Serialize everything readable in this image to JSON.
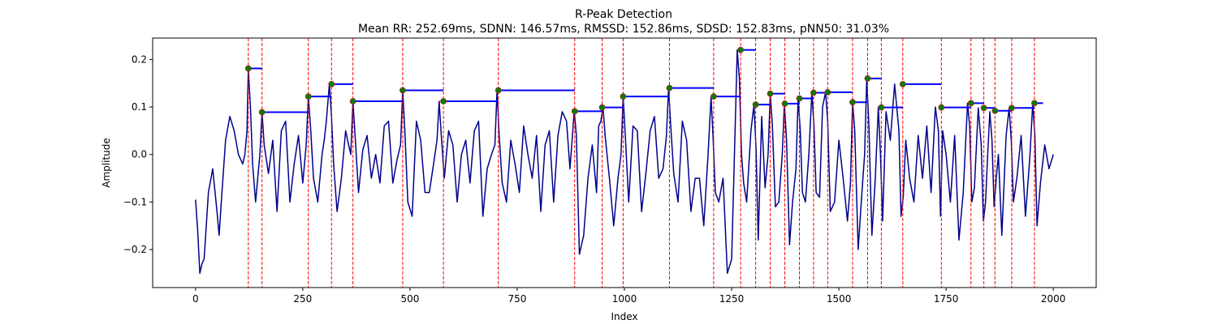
{
  "chart_data": {
    "type": "line",
    "title": "R-Peak Detection",
    "subtitle": "Mean RR: 252.69ms, SDNN: 146.57ms, RMSSD: 152.86ms, SDSD: 152.83ms, pNN50: 31.03%",
    "xlabel": "Index",
    "ylabel": "Amplitude",
    "xlim": [
      -100,
      2100
    ],
    "ylim": [
      -0.28,
      0.245
    ],
    "xticks": [
      0,
      250,
      500,
      750,
      1000,
      1250,
      1500,
      1750,
      2000
    ],
    "xtick_labels": [
      "0",
      "250",
      "500",
      "750",
      "1000",
      "1250",
      "1500",
      "1750",
      "2000"
    ],
    "yticks": [
      -0.2,
      -0.1,
      0.0,
      0.1,
      0.2
    ],
    "ytick_labels": [
      "−0.2",
      "−0.1",
      "0.0",
      "0.1",
      "0.2"
    ],
    "grid": false,
    "colors": {
      "signal": "#00008b",
      "peak_marker": "#008000",
      "rr_interval": "#0000ff",
      "peak_line": "#ff0000"
    },
    "signal": {
      "name": "",
      "x": [
        0,
        5,
        10,
        15,
        20,
        30,
        40,
        50,
        55,
        60,
        70,
        80,
        90,
        100,
        110,
        115,
        120,
        123,
        128,
        133,
        140,
        145,
        150,
        155,
        160,
        170,
        180,
        190,
        200,
        210,
        220,
        230,
        240,
        250,
        258,
        263,
        268,
        275,
        285,
        295,
        300,
        305,
        312,
        317,
        322,
        330,
        340,
        350,
        357,
        362,
        367,
        372,
        380,
        390,
        400,
        410,
        420,
        430,
        440,
        450,
        460,
        470,
        478,
        483,
        488,
        495,
        505,
        515,
        525,
        535,
        545,
        555,
        563,
        568,
        573,
        580,
        590,
        600,
        610,
        620,
        630,
        640,
        650,
        660,
        670,
        680,
        690,
        698,
        703,
        708,
        715,
        725,
        735,
        745,
        755,
        765,
        775,
        785,
        795,
        805,
        815,
        825,
        835,
        845,
        855,
        865,
        873,
        878,
        883,
        888,
        895,
        905,
        915,
        925,
        935,
        940,
        945,
        950,
        955,
        965,
        975,
        985,
        992,
        997,
        1002,
        1010,
        1020,
        1030,
        1040,
        1050,
        1060,
        1070,
        1080,
        1090,
        1098,
        1103,
        1108,
        1115,
        1125,
        1135,
        1145,
        1155,
        1165,
        1175,
        1185,
        1195,
        1202,
        1207,
        1212,
        1220,
        1230,
        1240,
        1250,
        1258,
        1263,
        1268,
        1273,
        1278,
        1285,
        1295,
        1302,
        1307,
        1312,
        1320,
        1328,
        1335,
        1340,
        1345,
        1352,
        1360,
        1368,
        1373,
        1378,
        1385,
        1392,
        1400,
        1405,
        1410,
        1415,
        1422,
        1430,
        1437,
        1442,
        1447,
        1455,
        1462,
        1469,
        1474,
        1480,
        1490,
        1500,
        1510,
        1520,
        1527,
        1532,
        1537,
        1545,
        1553,
        1560,
        1565,
        1570,
        1577,
        1585,
        1592,
        1597,
        1602,
        1610,
        1620,
        1630,
        1640,
        1645,
        1650,
        1656,
        1665,
        1675,
        1685,
        1695,
        1705,
        1715,
        1725,
        1732,
        1737,
        1742,
        1750,
        1760,
        1770,
        1780,
        1790,
        1800,
        1805,
        1810,
        1816,
        1825,
        1832,
        1837,
        1842,
        1847,
        1852,
        1857,
        1862,
        1867,
        1872,
        1880,
        1890,
        1897,
        1902,
        1907,
        1915,
        1925,
        1935,
        1945,
        1952,
        1957,
        1962,
        1970,
        1980,
        1990,
        2000
      ],
      "y": [
        -0.095,
        -0.16,
        -0.25,
        -0.23,
        -0.22,
        -0.08,
        -0.03,
        -0.12,
        -0.17,
        -0.1,
        0.03,
        0.08,
        0.05,
        0.0,
        -0.02,
        0.0,
        0.05,
        0.181,
        0.1,
        -0.02,
        -0.1,
        -0.05,
        0.0,
        0.09,
        0.02,
        -0.04,
        0.03,
        -0.12,
        0.05,
        0.07,
        -0.1,
        -0.02,
        0.04,
        -0.06,
        0.02,
        0.122,
        0.06,
        -0.05,
        -0.1,
        0.0,
        0.03,
        0.07,
        0.148,
        0.08,
        -0.02,
        -0.12,
        -0.05,
        0.05,
        0.02,
        0.0,
        0.112,
        0.04,
        -0.08,
        0.01,
        0.04,
        -0.05,
        0.0,
        -0.06,
        0.06,
        0.07,
        -0.06,
        -0.01,
        0.02,
        0.135,
        0.05,
        -0.1,
        -0.13,
        0.07,
        0.03,
        -0.08,
        -0.08,
        -0.02,
        0.03,
        0.112,
        0.04,
        -0.05,
        0.05,
        0.02,
        -0.1,
        0.0,
        0.03,
        -0.06,
        0.05,
        0.07,
        -0.13,
        -0.03,
        0.0,
        0.02,
        0.135,
        0.04,
        -0.06,
        -0.1,
        0.03,
        -0.02,
        -0.08,
        0.06,
        0.0,
        -0.05,
        0.04,
        -0.12,
        0.02,
        0.05,
        -0.1,
        0.04,
        0.09,
        0.07,
        -0.03,
        0.03,
        0.092,
        0.04,
        -0.21,
        -0.17,
        -0.05,
        0.02,
        -0.08,
        0.06,
        0.07,
        0.1,
        0.04,
        -0.05,
        -0.15,
        -0.05,
        0.0,
        0.122,
        0.04,
        -0.1,
        0.06,
        0.05,
        -0.12,
        -0.04,
        0.05,
        0.08,
        -0.05,
        -0.03,
        0.04,
        0.14,
        0.06,
        -0.04,
        -0.1,
        0.07,
        0.03,
        -0.12,
        -0.05,
        -0.05,
        -0.15,
        0.0,
        0.122,
        0.03,
        -0.08,
        -0.1,
        -0.05,
        -0.25,
        -0.22,
        0.05,
        0.22,
        0.16,
        0.0,
        -0.06,
        -0.1,
        0.05,
        0.105,
        0.01,
        -0.18,
        0.08,
        -0.07,
        0.0,
        0.128,
        0.06,
        -0.11,
        -0.1,
        0.0,
        0.107,
        0.03,
        -0.19,
        -0.1,
        -0.03,
        0.12,
        0.05,
        -0.08,
        -0.1,
        0.0,
        0.13,
        0.06,
        -0.08,
        -0.09,
        0.1,
        0.131,
        0.07,
        -0.12,
        -0.1,
        0.03,
        -0.05,
        -0.14,
        -0.06,
        0.11,
        0.05,
        -0.2,
        -0.09,
        0.0,
        0.16,
        0.06,
        -0.17,
        -0.05,
        0.1,
        0.0,
        -0.14,
        0.09,
        0.03,
        0.148,
        0.05,
        -0.13,
        -0.09,
        0.03,
        -0.05,
        -0.1,
        0.04,
        -0.05,
        0.06,
        -0.08,
        0.1,
        0.05,
        -0.13,
        0.05,
        0.0,
        -0.1,
        0.04,
        -0.18,
        -0.08,
        0.108,
        0.06,
        -0.1,
        -0.07,
        0.098,
        0.02,
        -0.14,
        -0.1,
        0.0,
        0.09,
        0.03,
        -0.11,
        -0.05,
        0.0,
        -0.17,
        0.04,
        0.098,
        0.03,
        -0.1,
        -0.05,
        0.04,
        -0.13,
        -0.01,
        0.108,
        0.04,
        -0.15,
        -0.06,
        0.02,
        -0.03,
        0.0
      ]
    },
    "peaks": {
      "name": "",
      "x": [
        123,
        155,
        263,
        317,
        367,
        483,
        578,
        706,
        884,
        948,
        997,
        1105,
        1208,
        1271,
        1306,
        1340,
        1374,
        1408,
        1441,
        1474,
        1532,
        1567,
        1599,
        1649,
        1739,
        1808,
        1838,
        1864,
        1903,
        1956
      ],
      "y": [
        0.181,
        0.089,
        0.122,
        0.148,
        0.112,
        0.135,
        0.112,
        0.135,
        0.091,
        0.099,
        0.122,
        0.14,
        0.122,
        0.22,
        0.105,
        0.128,
        0.107,
        0.118,
        0.13,
        0.131,
        0.11,
        0.16,
        0.099,
        0.148,
        0.099,
        0.108,
        0.098,
        0.092,
        0.098,
        0.108
      ]
    }
  }
}
